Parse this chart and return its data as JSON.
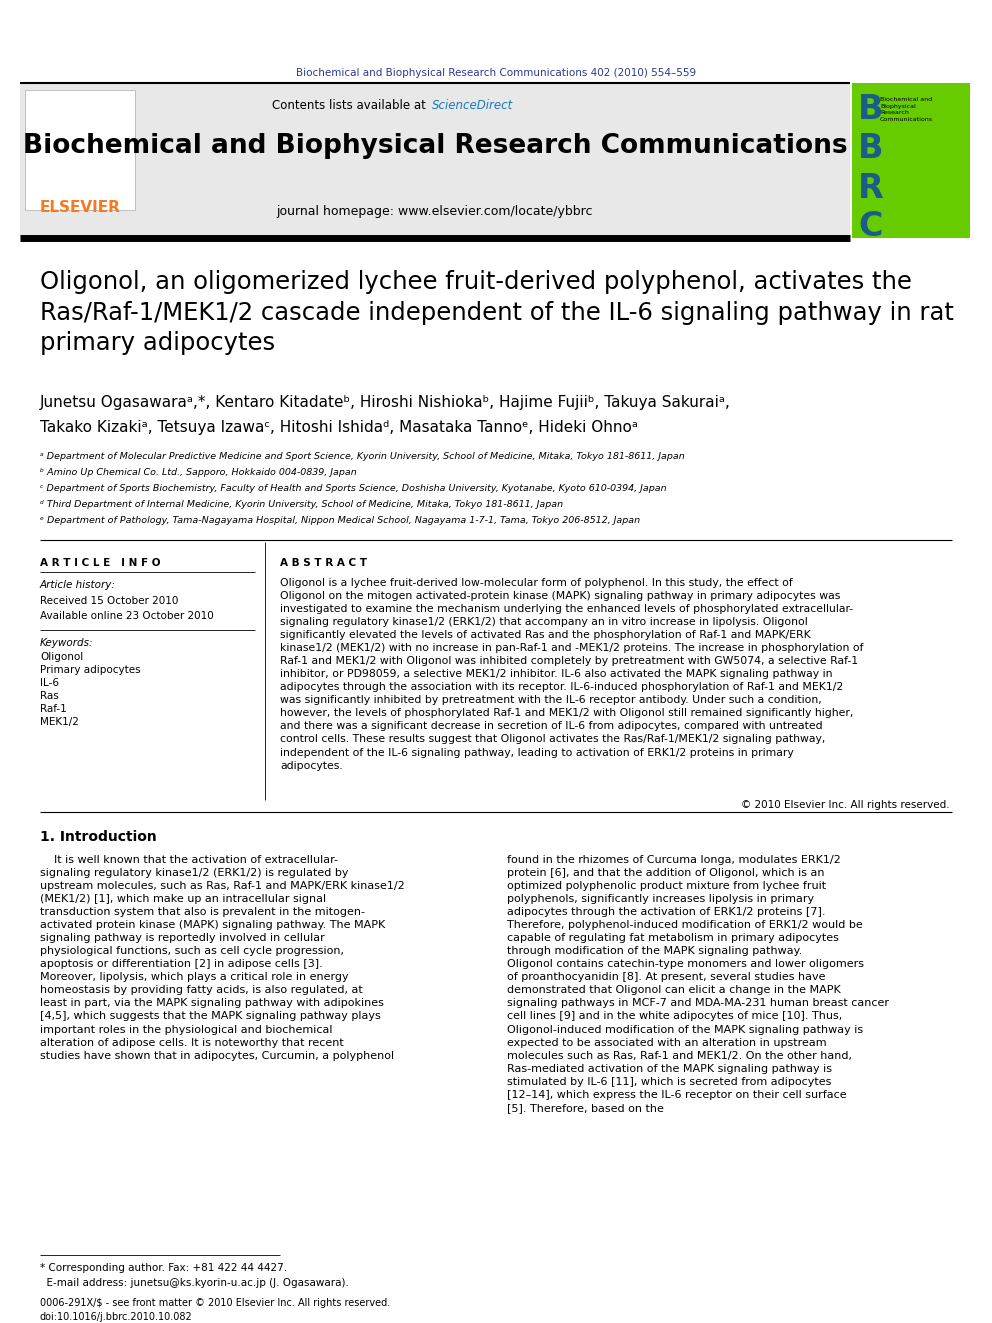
{
  "journal_ref": "Biochemical and Biophysical Research Communications 402 (2010) 554–559",
  "journal_ref_color": "#2b3a8f",
  "header_bg": "#e8e8e8",
  "journal_title": "Biochemical and Biophysical Research Communications",
  "sciencedirect_color": "#1a7abf",
  "homepage_text": "journal homepage: www.elsevier.com/locate/ybbrc",
  "elsevier_color": "#f47920",
  "article_title": "Oligonol, an oligomerized lychee fruit-derived polyphenol, activates the\nRas/Raf-1/MEK1/2 cascade independent of the IL-6 signaling pathway in rat\nprimary adipocytes",
  "authors_line1": "Junetsu Ogasawaraᵃ,*, Kentaro Kitadateᵇ, Hiroshi Nishiokaᵇ, Hajime Fujiiᵇ, Takuya Sakuraiᵃ,",
  "authors_line2": "Takako Kizakiᵃ, Tetsuya Izawaᶜ, Hitoshi Ishidaᵈ, Masataka Tannoᵉ, Hideki Ohnoᵃ",
  "affiliations": [
    "ᵃ Department of Molecular Predictive Medicine and Sport Science, Kyorin University, School of Medicine, Mitaka, Tokyo 181-8611, Japan",
    "ᵇ Amino Up Chemical Co. Ltd., Sapporo, Hokkaido 004-0839, Japan",
    "ᶜ Department of Sports Biochemistry, Faculty of Health and Sports Science, Doshisha University, Kyotanabe, Kyoto 610-0394, Japan",
    "ᵈ Third Department of Internal Medicine, Kyorin University, School of Medicine, Mitaka, Tokyo 181-8611, Japan",
    "ᵉ Department of Pathology, Tama-Nagayama Hospital, Nippon Medical School, Nagayama 1-7-1, Tama, Tokyo 206-8512, Japan"
  ],
  "article_info_label": "A R T I C L E   I N F O",
  "abstract_label": "A B S T R A C T",
  "article_history_label": "Article history:",
  "received_text": "Received 15 October 2010",
  "available_text": "Available online 23 October 2010",
  "keywords_label": "Keywords:",
  "keywords": [
    "Oligonol",
    "Primary adipocytes",
    "IL-6",
    "Ras",
    "Raf-1",
    "MEK1/2"
  ],
  "abstract_text": "Oligonol is a lychee fruit-derived low-molecular form of polyphenol. In this study, the effect of Oligonol on the mitogen activated-protein kinase (MAPK) signaling pathway in primary adipocytes was investigated to examine the mechanism underlying the enhanced levels of phosphorylated extracellular-signaling regulatory kinase1/2 (ERK1/2) that accompany an in vitro increase in lipolysis. Oligonol significantly elevated the levels of activated Ras and the phosphorylation of Raf-1 and MAPK/ERK kinase1/2 (MEK1/2) with no increase in pan-Raf-1 and -MEK1/2 proteins. The increase in phosphorylation of Raf-1 and MEK1/2 with Oligonol was inhibited completely by pretreatment with GW5074, a selective Raf-1 inhibitor, or PD98059, a selective MEK1/2 inhibitor. IL-6 also activated the MAPK signaling pathway in adipocytes through the association with its receptor. IL-6-induced phosphorylation of Raf-1 and MEK1/2 was significantly inhibited by pretreatment with the IL-6 receptor antibody. Under such a condition, however, the levels of phosphorylated Raf-1 and MEK1/2 with Oligonol still remained significantly higher, and there was a significant decrease in secretion of IL-6 from adipocytes, compared with untreated control cells. These results suggest that Oligonol activates the Ras/Raf-1/MEK1/2 signaling pathway, independent of the IL-6 signaling pathway, leading to activation of ERK1/2 proteins in primary adipocytes.",
  "copyright_text": "© 2010 Elsevier Inc. All rights reserved.",
  "intro_label": "1. Introduction",
  "intro_text_col1": "    It is well known that the activation of extracellular-signaling regulatory kinase1/2 (ERK1/2) is regulated by upstream molecules, such as Ras, Raf-1 and MAPK/ERK kinase1/2 (MEK1/2) [1], which make up an intracellular signal transduction system that also is prevalent in the mitogen-activated protein kinase (MAPK) signaling pathway. The MAPK signaling pathway is reportedly involved in cellular physiological functions, such as cell cycle progression, apoptosis or differentiation [2] in adipose cells [3]. Moreover, lipolysis, which plays a critical role in energy homeostasis by providing fatty acids, is also regulated, at least in part, via the MAPK signaling pathway with adipokines [4,5], which suggests that the MAPK signaling pathway plays important roles in the physiological and biochemical alteration of adipose cells. It is noteworthy that recent studies have shown that in adipocytes, Curcumin, a polyphenol",
  "intro_text_col2": "found in the rhizomes of Curcuma longa, modulates ERK1/2 protein [6], and that the addition of Oligonol, which is an optimized polyphenolic product mixture from lychee fruit polyphenols, significantly increases lipolysis in primary adipocytes through the activation of ERK1/2 proteins [7]. Therefore, polyphenol-induced modification of ERK1/2 would be capable of regulating fat metabolism in primary adipocytes through modification of the MAPK signaling pathway.\n    Oligonol contains catechin-type monomers and lower oligomers of proanthocyanidin [8]. At present, several studies have demonstrated that Oligonol can elicit a change in the MAPK signaling pathways in MCF-7 and MDA-MA-231 human breast cancer cell lines [9] and in the white adipocytes of mice [10]. Thus, Oligonol-induced modification of the MAPK signaling pathway is expected to be associated with an alteration in upstream molecules such as Ras, Raf-1 and MEK1/2. On the other hand, Ras-mediated activation of the MAPK signaling pathway is stimulated by IL-6 [11], which is secreted from adipocytes [12–14], which express the IL-6 receptor on their cell surface [5]. Therefore, based on the",
  "footnote_text": "* Corresponding author. Fax: +81 422 44 4427.",
  "footnote_email": "  E-mail address: junetsu@ks.kyorin-u.ac.jp (J. Ogasawara).",
  "bottom_text": "0006-291X/$ - see front matter © 2010 Elsevier Inc. All rights reserved.\ndoi:10.1016/j.bbrc.2010.10.082",
  "bbrc_bg": "#66cc00"
}
